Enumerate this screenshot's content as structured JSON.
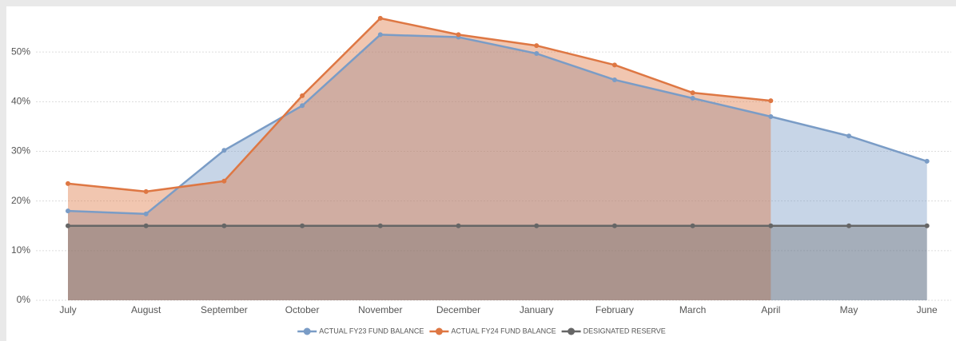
{
  "chart_data": {
    "type": "area",
    "categories": [
      "July",
      "August",
      "September",
      "October",
      "November",
      "December",
      "January",
      "February",
      "March",
      "April",
      "May",
      "June"
    ],
    "series": [
      {
        "name": "ACTUAL FY23 FUND BALANCE",
        "color": "#7a9cc6",
        "values": [
          18.0,
          17.4,
          30.2,
          39.2,
          53.5,
          53.0,
          49.7,
          44.4,
          40.7,
          37.0,
          33.1,
          28.0
        ]
      },
      {
        "name": "ACTUAL FY24 FUND BALANCE",
        "color": "#de7743",
        "values": [
          23.5,
          21.9,
          24.0,
          41.2,
          56.8,
          53.5,
          51.3,
          47.4,
          41.8,
          40.2,
          null,
          null
        ]
      },
      {
        "name": "DESIGNATED RESERVE",
        "color": "#666666",
        "values": [
          15,
          15,
          15,
          15,
          15,
          15,
          15,
          15,
          15,
          15,
          15,
          15
        ]
      }
    ],
    "ylim": [
      0,
      60
    ],
    "yticks": [
      {
        "value": 0,
        "label": "0%"
      },
      {
        "value": 10,
        "label": "10%"
      },
      {
        "value": 20,
        "label": "20%"
      },
      {
        "value": 30,
        "label": "30%"
      },
      {
        "value": 40,
        "label": "40%"
      },
      {
        "value": 50,
        "label": "50%"
      }
    ],
    "grid": true,
    "legend": "bottom"
  }
}
